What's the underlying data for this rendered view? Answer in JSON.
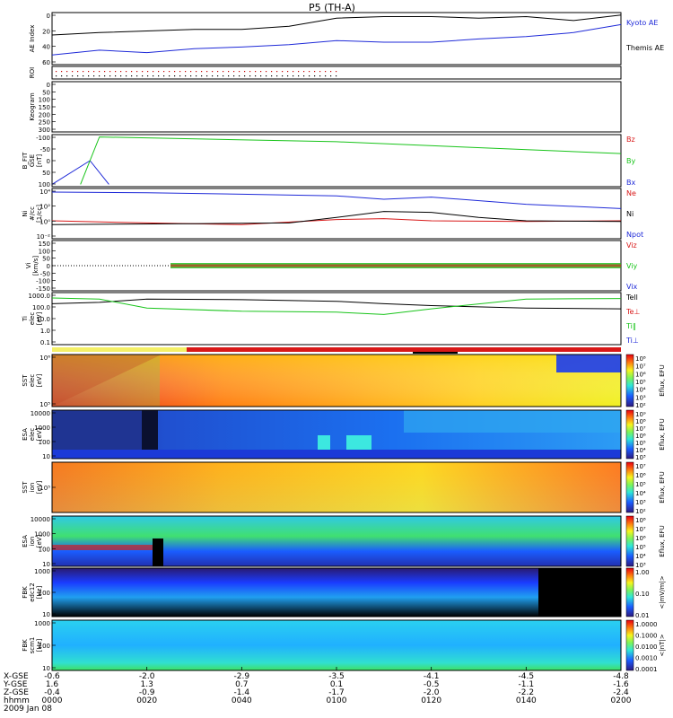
{
  "title": "P5 (TH-A)",
  "date_label": "2009 Jan 08",
  "colors": {
    "black": "#000000",
    "blue": "#1f2ad8",
    "green": "#18c41a",
    "red": "#d81818",
    "roi_red": "#c80000"
  },
  "time_axis": {
    "ticks": [
      "0000",
      "0020",
      "0040",
      "0100",
      "0120",
      "0140",
      "0200"
    ],
    "x_gse": [
      "-0.6",
      "-2.0",
      "-2.9",
      "-3.5",
      "-4.1",
      "-4.5",
      "-4.8"
    ],
    "y_gse": [
      "1.6",
      "1.3",
      "0.7",
      "0.1",
      "-0.5",
      "-1.1",
      "-1.6"
    ],
    "z_gse": [
      "-0.4",
      "-0.9",
      "-1.4",
      "-1.7",
      "-2.0",
      "-2.2",
      "-2.4"
    ],
    "row_labels": [
      "X-GSE",
      "Y-GSE",
      "Z-GSE",
      "hhmm",
      "2009 Jan 08"
    ]
  },
  "panels": {
    "ae": {
      "ylabel": "AE Index",
      "yticks": [
        "0",
        "20",
        "40",
        "60"
      ],
      "legend": [
        "Kyoto AE",
        "Themis AE"
      ]
    },
    "roi": {
      "ylabel": "ROI"
    },
    "keogram": {
      "ylabel": "Keogram",
      "yticks": [
        "0",
        "50",
        "100",
        "150",
        "200",
        "250",
        "300"
      ]
    },
    "bfit": {
      "ylabel": "B_FIT\nGSE\n[nT]",
      "yticks": [
        "-100",
        "-50",
        "0",
        "50",
        "100"
      ],
      "legend": [
        "Bz",
        "By",
        "Bx"
      ]
    },
    "density": {
      "ylabel": "Ni\n#/cc\n[1/cc]",
      "yticks": [
        "10⁴",
        "10²",
        "10⁰",
        "10⁻²"
      ],
      "legend": [
        "Ne",
        "Ni",
        "Npot"
      ]
    },
    "velocity": {
      "ylabel": "Vi\n[km/s]",
      "yticks": [
        "150",
        "100",
        "50",
        "0",
        "-50",
        "-100",
        "-150"
      ],
      "legend": [
        "Viz",
        "Viy",
        "Vix"
      ]
    },
    "temp": {
      "ylabel": "Ti\nelec\n[eV]",
      "yticks": [
        "1000.0",
        "100.0",
        "10.0",
        "1.0",
        "0.1"
      ],
      "legend": [
        "Tell",
        "Te⊥",
        "Ti‖",
        "Ti⊥"
      ]
    },
    "sst_elec": {
      "ylabel": "SST\nelec\n[eV]",
      "yticks": [
        "10⁶",
        "10⁵"
      ],
      "cbar": [
        "10⁸",
        "10⁷",
        "10⁶",
        "10⁵",
        "10⁴",
        "10³",
        "10²"
      ],
      "cbar_label": "Eflux, EFU"
    },
    "esa_elec": {
      "ylabel": "ESA\nelec\n[eV]",
      "yticks": [
        "10000",
        "1000",
        "100",
        "10"
      ],
      "cbar": [
        "10⁹",
        "10⁸",
        "10⁷",
        "10⁶",
        "10⁵",
        "10⁴",
        "10³"
      ],
      "cbar_label": "Eflux, EFU"
    },
    "sst_ion": {
      "ylabel": "SST\nion\n[eV]",
      "yticks": [
        "10⁵"
      ],
      "cbar": [
        "10⁷",
        "10⁶",
        "10⁵",
        "10⁴",
        "10³",
        "10²"
      ],
      "cbar_label": "Eflux, EFU"
    },
    "esa_ion": {
      "ylabel": "ESA\nion\n[eV]",
      "yticks": [
        "10000",
        "1000",
        "100",
        "10"
      ],
      "cbar": [
        "10⁸",
        "10⁷",
        "10⁶",
        "10⁵",
        "10⁴",
        "10³"
      ],
      "cbar_label": "Eflux, EFU"
    },
    "fbk_edc": {
      "ylabel": "FBK\nedc12\n[Hz]",
      "yticks": [
        "1000",
        "100",
        "10"
      ],
      "cbar": [
        "1.00",
        "0.10",
        "0.01"
      ],
      "cbar_label": "<|mV/m|>"
    },
    "fbk_scm": {
      "ylabel": "FBK\nscm1\n[Hz]",
      "yticks": [
        "1000",
        "100",
        "10"
      ],
      "cbar": [
        "1.0000",
        "0.1000",
        "0.0100",
        "0.0010",
        "0.0001"
      ],
      "cbar_label": "<|nT|>"
    }
  },
  "chart_data": {
    "type": "line",
    "x_range_hhmm": [
      "0000",
      "0200"
    ],
    "series": [
      {
        "name": "Kyoto AE",
        "panel": "ae",
        "x": [
          0,
          10,
          20,
          30,
          40,
          50,
          60,
          70,
          80,
          90,
          100,
          110,
          120
        ],
        "y": [
          37,
          40,
          42,
          44,
          44,
          48,
          58,
          60,
          60,
          58,
          60,
          55,
          62
        ]
      },
      {
        "name": "Themis AE",
        "panel": "ae",
        "x": [
          0,
          10,
          20,
          30,
          40,
          50,
          60,
          70,
          80,
          90,
          100,
          110,
          120
        ],
        "y": [
          12,
          18,
          15,
          20,
          22,
          25,
          30,
          28,
          28,
          32,
          35,
          40,
          50
        ]
      },
      {
        "name": "Bx",
        "panel": "bfit",
        "x": [
          0,
          8,
          12
        ],
        "y": [
          -100,
          0,
          -100
        ]
      },
      {
        "name": "By",
        "panel": "bfit",
        "x": [
          6,
          10,
          60,
          120
        ],
        "y": [
          -100,
          100,
          80,
          30
        ]
      },
      {
        "name": "Ne",
        "panel": "density",
        "x": [
          0,
          20,
          40,
          60,
          70,
          80,
          100,
          120
        ],
        "y": [
          1,
          0.5,
          0.3,
          1.5,
          2,
          1,
          0.8,
          1
        ]
      },
      {
        "name": "Ni",
        "panel": "density",
        "x": [
          0,
          30,
          50,
          60,
          70,
          80,
          90,
          100,
          120
        ],
        "y": [
          0.3,
          0.4,
          0.5,
          3,
          20,
          15,
          3,
          1,
          0.8
        ]
      },
      {
        "name": "Npot",
        "panel": "density",
        "x": [
          0,
          20,
          40,
          60,
          70,
          80,
          100,
          120
        ],
        "y": [
          10000,
          8000,
          5000,
          3000,
          1000,
          2000,
          200,
          50
        ]
      },
      {
        "name": "Tell",
        "panel": "temp",
        "x": [
          0,
          10,
          20,
          40,
          60,
          70,
          80,
          100,
          120
        ],
        "y": [
          300,
          400,
          800,
          700,
          500,
          300,
          200,
          120,
          100
        ]
      },
      {
        "name": "Ti‖",
        "panel": "temp",
        "x": [
          0,
          10,
          20,
          40,
          60,
          70,
          80,
          100,
          120
        ],
        "y": [
          1000,
          800,
          120,
          60,
          50,
          30,
          100,
          800,
          900
        ]
      }
    ]
  }
}
